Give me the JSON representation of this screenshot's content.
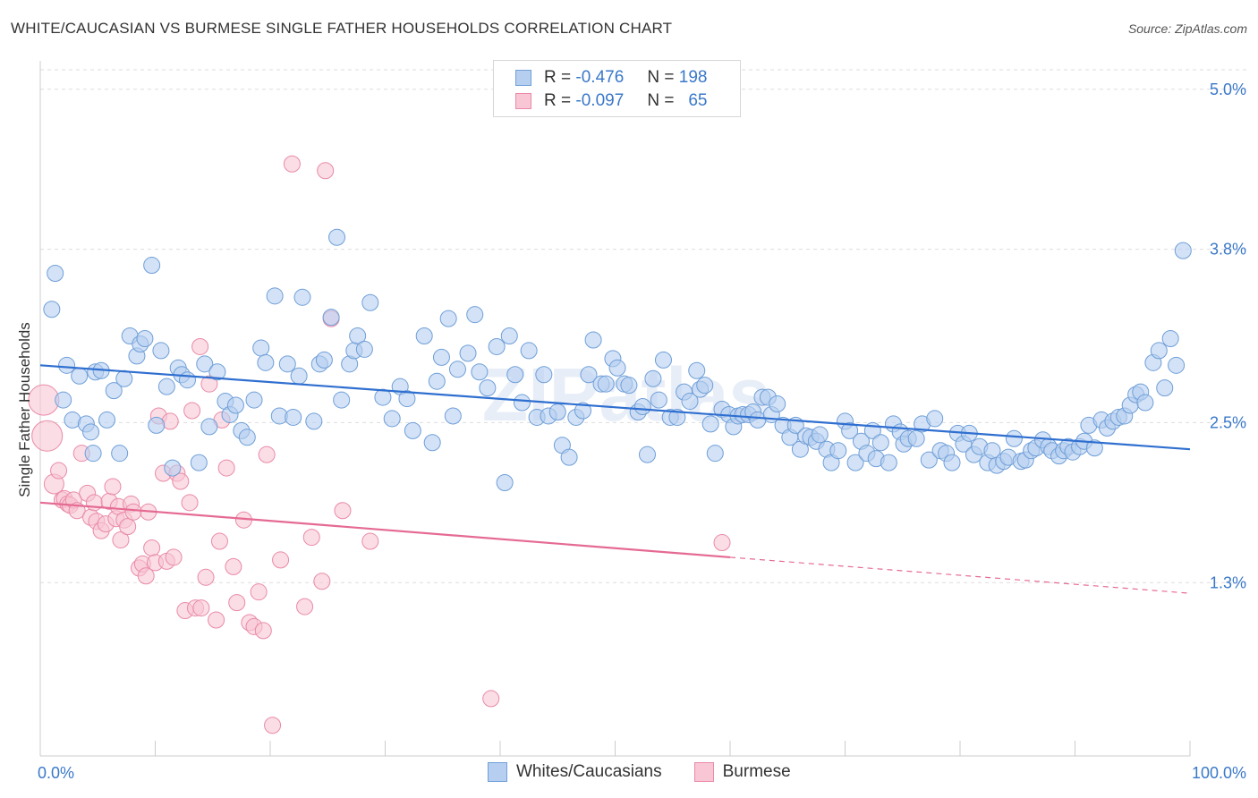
{
  "header": {
    "title": "WHITE/CAUCASIAN VS BURMESE SINGLE FATHER HOUSEHOLDS CORRELATION CHART",
    "source": "Source: ZipAtlas.com"
  },
  "legend": {
    "r_label": "R =",
    "n_label": "N =",
    "series": [
      {
        "name": "Whites/Caucasians",
        "r": "-0.476",
        "n": "198",
        "fill": "#b6cff0",
        "stroke": "#6f9fd8"
      },
      {
        "name": "Burmese",
        "r": "-0.097",
        "n": "65",
        "fill": "#f8c6d4",
        "stroke": "#e98aa7"
      }
    ]
  },
  "watermark": "ZIPatlas",
  "chart_data": {
    "type": "scatter",
    "title": "WHITE/CAUCASIAN VS BURMESE SINGLE FATHER HOUSEHOLDS CORRELATION CHART",
    "xlabel": "",
    "ylabel": "Single Father Households",
    "xlim": [
      0,
      100
    ],
    "ylim": [
      0.0,
      5.2
    ],
    "x_tick_labels": [
      "0.0%",
      "100.0%"
    ],
    "y_ticks": [
      1.3,
      2.5,
      3.8,
      5.0
    ],
    "y_tick_labels": [
      "1.3%",
      "2.5%",
      "3.8%",
      "5.0%"
    ],
    "grid": "horizontal dashed",
    "legend_position": "top-center",
    "series": [
      {
        "name": "Whites/Caucasians",
        "color": "#6f9fd8",
        "fill": "#b6cff0",
        "trend": {
          "x0": 0,
          "y0": 2.93,
          "x1": 100,
          "y1": 2.3,
          "color": "#2f6fd0"
        },
        "points": [
          [
            1.0,
            3.35
          ],
          [
            1.3,
            3.62
          ],
          [
            2.0,
            2.67
          ],
          [
            2.3,
            2.93
          ],
          [
            2.8,
            2.52
          ],
          [
            3.4,
            2.85
          ],
          [
            4.0,
            2.49
          ],
          [
            4.4,
            2.43
          ],
          [
            4.6,
            2.27
          ],
          [
            4.8,
            2.88
          ],
          [
            5.3,
            2.89
          ],
          [
            5.8,
            2.52
          ],
          [
            6.4,
            2.74
          ],
          [
            6.9,
            2.27
          ],
          [
            7.3,
            2.83
          ],
          [
            7.8,
            3.15
          ],
          [
            8.4,
            3.0
          ],
          [
            8.7,
            3.09
          ],
          [
            9.1,
            3.13
          ],
          [
            9.7,
            3.68
          ],
          [
            10.1,
            2.48
          ],
          [
            10.5,
            3.04
          ],
          [
            11.0,
            2.77
          ],
          [
            11.5,
            2.16
          ],
          [
            12.0,
            2.91
          ],
          [
            12.3,
            2.86
          ],
          [
            12.8,
            2.82
          ],
          [
            13.8,
            2.2
          ],
          [
            14.3,
            2.94
          ],
          [
            14.7,
            2.47
          ],
          [
            15.4,
            2.88
          ],
          [
            16.1,
            2.66
          ],
          [
            16.5,
            2.56
          ],
          [
            17.0,
            2.63
          ],
          [
            17.5,
            2.44
          ],
          [
            18.0,
            2.39
          ],
          [
            18.6,
            2.67
          ],
          [
            19.2,
            3.06
          ],
          [
            19.6,
            2.95
          ],
          [
            20.4,
            3.45
          ],
          [
            20.8,
            2.55
          ],
          [
            21.5,
            2.94
          ],
          [
            22.0,
            2.54
          ],
          [
            22.5,
            2.85
          ],
          [
            22.8,
            3.44
          ],
          [
            23.8,
            2.51
          ],
          [
            24.3,
            2.94
          ],
          [
            24.7,
            2.97
          ],
          [
            25.3,
            3.29
          ],
          [
            25.8,
            3.89
          ],
          [
            26.2,
            2.67
          ],
          [
            26.9,
            2.94
          ],
          [
            27.3,
            3.04
          ],
          [
            27.6,
            3.15
          ],
          [
            28.2,
            3.05
          ],
          [
            28.7,
            3.4
          ],
          [
            29.8,
            2.69
          ],
          [
            30.6,
            2.53
          ],
          [
            31.3,
            2.77
          ],
          [
            31.9,
            2.68
          ],
          [
            32.4,
            2.44
          ],
          [
            33.4,
            3.15
          ],
          [
            34.1,
            2.35
          ],
          [
            34.5,
            2.81
          ],
          [
            34.9,
            2.99
          ],
          [
            35.5,
            3.28
          ],
          [
            35.9,
            2.55
          ],
          [
            36.3,
            2.9
          ],
          [
            37.2,
            3.02
          ],
          [
            37.8,
            3.31
          ],
          [
            38.2,
            2.88
          ],
          [
            38.9,
            2.76
          ],
          [
            39.7,
            3.07
          ],
          [
            40.4,
            2.05
          ],
          [
            40.8,
            3.15
          ],
          [
            41.3,
            2.86
          ],
          [
            41.9,
            2.65
          ],
          [
            42.5,
            3.04
          ],
          [
            43.2,
            2.54
          ],
          [
            43.8,
            2.86
          ],
          [
            44.2,
            2.55
          ],
          [
            45.0,
            2.58
          ],
          [
            45.4,
            2.33
          ],
          [
            46.0,
            2.24
          ],
          [
            46.6,
            2.54
          ],
          [
            47.2,
            2.59
          ],
          [
            47.7,
            2.86
          ],
          [
            48.1,
            3.12
          ],
          [
            48.8,
            2.79
          ],
          [
            49.2,
            2.79
          ],
          [
            49.8,
            2.98
          ],
          [
            50.2,
            2.91
          ],
          [
            50.8,
            2.79
          ],
          [
            51.2,
            2.78
          ],
          [
            52.0,
            2.58
          ],
          [
            52.4,
            2.62
          ],
          [
            52.8,
            2.26
          ],
          [
            53.3,
            2.83
          ],
          [
            53.8,
            2.67
          ],
          [
            54.2,
            2.97
          ],
          [
            54.8,
            2.54
          ],
          [
            55.4,
            2.54
          ],
          [
            56.0,
            2.73
          ],
          [
            56.5,
            2.66
          ],
          [
            57.1,
            2.89
          ],
          [
            57.4,
            2.75
          ],
          [
            57.8,
            2.78
          ],
          [
            58.3,
            2.49
          ],
          [
            58.7,
            2.27
          ],
          [
            59.3,
            2.6
          ],
          [
            59.9,
            2.56
          ],
          [
            60.3,
            2.47
          ],
          [
            60.7,
            2.55
          ],
          [
            61.1,
            2.56
          ],
          [
            61.6,
            2.56
          ],
          [
            62.0,
            2.58
          ],
          [
            62.4,
            2.52
          ],
          [
            62.8,
            2.69
          ],
          [
            63.3,
            2.69
          ],
          [
            63.6,
            2.56
          ],
          [
            64.1,
            2.64
          ],
          [
            64.6,
            2.48
          ],
          [
            65.2,
            2.39
          ],
          [
            65.7,
            2.48
          ],
          [
            66.1,
            2.3
          ],
          [
            66.6,
            2.4
          ],
          [
            67.0,
            2.39
          ],
          [
            67.5,
            2.36
          ],
          [
            67.8,
            2.41
          ],
          [
            68.4,
            2.3
          ],
          [
            68.8,
            2.2
          ],
          [
            69.4,
            2.29
          ],
          [
            70.0,
            2.51
          ],
          [
            70.4,
            2.44
          ],
          [
            70.9,
            2.2
          ],
          [
            71.4,
            2.36
          ],
          [
            71.9,
            2.27
          ],
          [
            72.4,
            2.44
          ],
          [
            72.7,
            2.23
          ],
          [
            73.1,
            2.35
          ],
          [
            73.8,
            2.2
          ],
          [
            74.2,
            2.49
          ],
          [
            74.8,
            2.43
          ],
          [
            75.1,
            2.34
          ],
          [
            75.5,
            2.38
          ],
          [
            76.2,
            2.38
          ],
          [
            76.7,
            2.49
          ],
          [
            77.3,
            2.22
          ],
          [
            77.8,
            2.53
          ],
          [
            78.3,
            2.29
          ],
          [
            78.8,
            2.27
          ],
          [
            79.3,
            2.2
          ],
          [
            79.8,
            2.42
          ],
          [
            80.3,
            2.34
          ],
          [
            80.8,
            2.42
          ],
          [
            81.2,
            2.26
          ],
          [
            81.7,
            2.32
          ],
          [
            82.4,
            2.2
          ],
          [
            82.8,
            2.29
          ],
          [
            83.2,
            2.18
          ],
          [
            83.8,
            2.21
          ],
          [
            84.2,
            2.24
          ],
          [
            84.7,
            2.38
          ],
          [
            85.3,
            2.21
          ],
          [
            85.7,
            2.22
          ],
          [
            86.2,
            2.29
          ],
          [
            86.6,
            2.31
          ],
          [
            87.2,
            2.37
          ],
          [
            87.7,
            2.32
          ],
          [
            88.0,
            2.29
          ],
          [
            88.6,
            2.25
          ],
          [
            89.0,
            2.29
          ],
          [
            89.4,
            2.32
          ],
          [
            89.8,
            2.28
          ],
          [
            90.4,
            2.32
          ],
          [
            90.8,
            2.36
          ],
          [
            91.2,
            2.48
          ],
          [
            91.7,
            2.31
          ],
          [
            92.3,
            2.52
          ],
          [
            92.8,
            2.46
          ],
          [
            93.3,
            2.51
          ],
          [
            93.8,
            2.54
          ],
          [
            94.3,
            2.55
          ],
          [
            94.8,
            2.63
          ],
          [
            95.3,
            2.71
          ],
          [
            95.7,
            2.73
          ],
          [
            96.1,
            2.65
          ],
          [
            96.8,
            2.95
          ],
          [
            97.3,
            3.04
          ],
          [
            97.8,
            2.76
          ],
          [
            98.3,
            3.13
          ],
          [
            98.8,
            2.93
          ],
          [
            99.4,
            3.79
          ]
        ]
      },
      {
        "name": "Burmese",
        "color": "#e98aa7",
        "fill": "#f8c6d4",
        "trend": {
          "x0": 0,
          "y0": 1.9,
          "x1": 60,
          "y1": 1.49,
          "color": "#e56a93",
          "dashed_extension": {
            "x1": 100,
            "y1": 1.22
          }
        },
        "points": [
          [
            0.3,
            2.67
          ],
          [
            0.6,
            2.4
          ],
          [
            1.2,
            2.04
          ],
          [
            1.6,
            2.14
          ],
          [
            1.9,
            1.92
          ],
          [
            2.1,
            1.93
          ],
          [
            2.4,
            1.89
          ],
          [
            2.6,
            1.88
          ],
          [
            2.9,
            1.92
          ],
          [
            3.2,
            1.84
          ],
          [
            3.6,
            2.27
          ],
          [
            4.1,
            1.97
          ],
          [
            4.4,
            1.79
          ],
          [
            4.7,
            1.9
          ],
          [
            4.9,
            1.76
          ],
          [
            5.3,
            1.69
          ],
          [
            5.7,
            1.74
          ],
          [
            6.0,
            1.91
          ],
          [
            6.3,
            2.02
          ],
          [
            6.6,
            1.78
          ],
          [
            6.8,
            1.87
          ],
          [
            7.0,
            1.62
          ],
          [
            7.3,
            1.77
          ],
          [
            7.6,
            1.72
          ],
          [
            7.9,
            1.89
          ],
          [
            8.1,
            1.83
          ],
          [
            8.6,
            1.41
          ],
          [
            8.9,
            1.44
          ],
          [
            9.2,
            1.35
          ],
          [
            9.4,
            1.83
          ],
          [
            9.7,
            1.56
          ],
          [
            10.0,
            1.45
          ],
          [
            10.3,
            2.55
          ],
          [
            10.7,
            2.12
          ],
          [
            11.0,
            1.46
          ],
          [
            11.3,
            2.51
          ],
          [
            11.6,
            1.49
          ],
          [
            11.9,
            2.12
          ],
          [
            12.2,
            2.06
          ],
          [
            12.6,
            1.09
          ],
          [
            13.0,
            1.9
          ],
          [
            13.2,
            2.59
          ],
          [
            13.5,
            1.11
          ],
          [
            13.9,
            3.07
          ],
          [
            14.0,
            1.11
          ],
          [
            14.4,
            1.34
          ],
          [
            14.7,
            2.79
          ],
          [
            15.3,
            1.02
          ],
          [
            15.6,
            1.61
          ],
          [
            15.8,
            2.52
          ],
          [
            16.2,
            2.16
          ],
          [
            16.8,
            1.42
          ],
          [
            17.1,
            1.15
          ],
          [
            17.7,
            1.77
          ],
          [
            18.2,
            1.0
          ],
          [
            18.6,
            0.97
          ],
          [
            19.0,
            1.23
          ],
          [
            19.4,
            0.94
          ],
          [
            19.7,
            2.26
          ],
          [
            20.2,
            0.23
          ],
          [
            20.9,
            1.47
          ],
          [
            21.9,
            4.44
          ],
          [
            23.0,
            1.12
          ],
          [
            23.6,
            1.64
          ],
          [
            24.5,
            1.31
          ],
          [
            24.8,
            4.39
          ],
          [
            25.3,
            3.28
          ],
          [
            26.3,
            1.84
          ],
          [
            28.7,
            1.61
          ],
          [
            39.2,
            0.43
          ],
          [
            59.3,
            1.6
          ]
        ]
      }
    ]
  }
}
